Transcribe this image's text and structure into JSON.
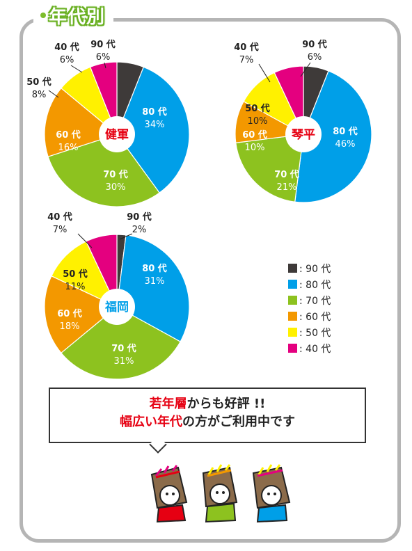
{
  "section_title": "年代別",
  "colors": {
    "90代": "#3e3a39",
    "80代": "#009fe8",
    "70代": "#8dc21f",
    "60代": "#f39800",
    "50代": "#fff100",
    "40代": "#e4007f",
    "panel_border": "#b5b5b5",
    "title_green": "#6ab023"
  },
  "chart_data": [
    {
      "type": "pie",
      "title": "健軍",
      "title_color": "#e60012",
      "categories": [
        "90代",
        "80代",
        "70代",
        "60代",
        "50代",
        "40代"
      ],
      "values": [
        6,
        34,
        30,
        16,
        8,
        6
      ]
    },
    {
      "type": "pie",
      "title": "琴平",
      "title_color": "#e60012",
      "categories": [
        "90代",
        "80代",
        "70代",
        "60代",
        "50代",
        "40代"
      ],
      "values": [
        6,
        46,
        21,
        10,
        10,
        7
      ]
    },
    {
      "type": "pie",
      "title": "福岡",
      "title_color": "#009fe8",
      "categories": [
        "90代",
        "80代",
        "70代",
        "60代",
        "50代",
        "40代"
      ],
      "values": [
        2,
        31,
        31,
        18,
        11,
        7
      ]
    }
  ],
  "slice_labels": [
    [
      "90 代",
      "80 代",
      "70 代",
      "60 代",
      "50 代",
      "40 代"
    ],
    [
      "90 代",
      "80 代",
      "70 代",
      "60 代",
      "50 代",
      "40 代"
    ],
    [
      "90 代",
      "80 代",
      "70 代",
      "60 代",
      "50 代",
      "40 代"
    ]
  ],
  "legend": [
    {
      "label": ": 90 代",
      "color": "#3e3a39"
    },
    {
      "label": ": 80 代",
      "color": "#009fe8"
    },
    {
      "label": ": 70 代",
      "color": "#8dc21f"
    },
    {
      "label": ": 60 代",
      "color": "#f39800"
    },
    {
      "label": ": 50 代",
      "color": "#fff100"
    },
    {
      "label": ": 40 代",
      "color": "#e4007f"
    }
  ],
  "message": {
    "line1_red": "若年層",
    "line1_rest": "からも好評 !!",
    "line2_red": "幅広い年代",
    "line2_rest": "の方がご利用中です"
  }
}
